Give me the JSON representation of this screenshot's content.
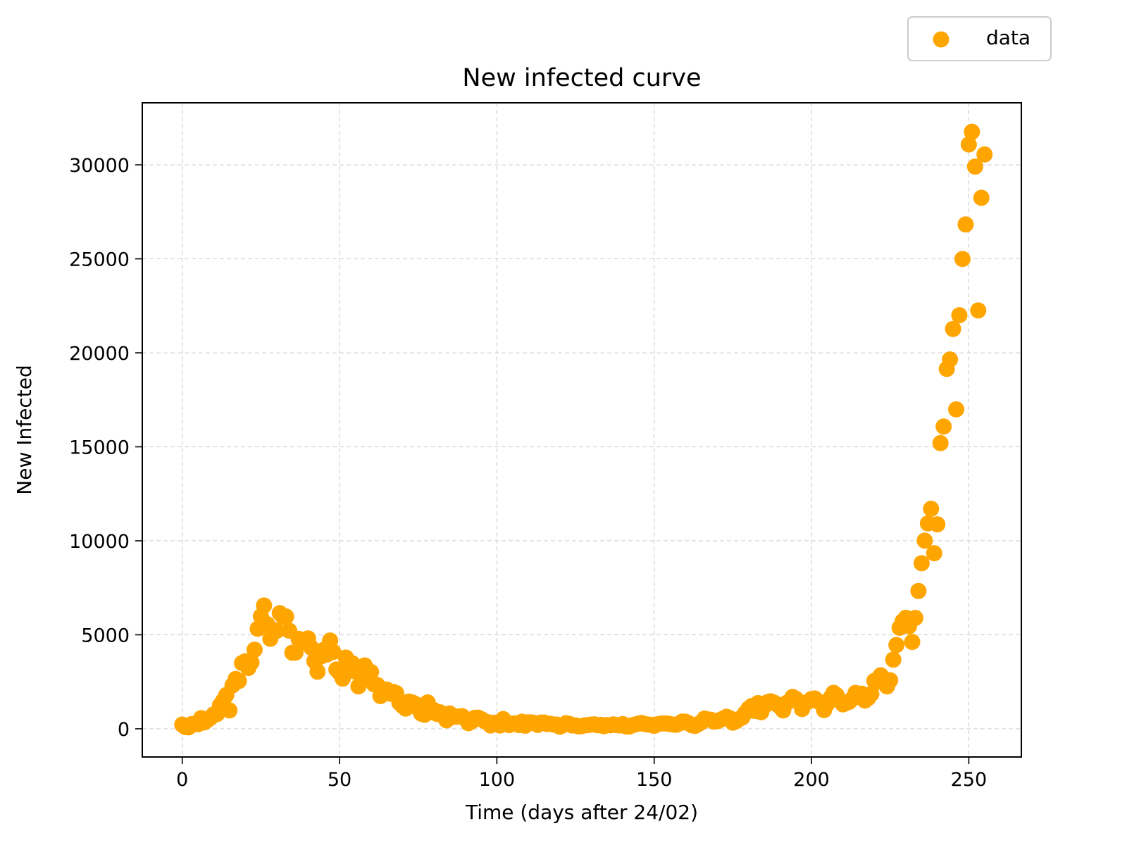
{
  "chart_data": {
    "type": "scatter",
    "title": "New infected curve",
    "xlabel": "Time (days after 24/02)",
    "ylabel": "New Infected",
    "xlim": [
      -12.7,
      266.7
    ],
    "ylim": [
      -1500,
      33300
    ],
    "xticks": [
      0,
      50,
      100,
      150,
      200,
      250
    ],
    "yticks": [
      0,
      5000,
      10000,
      15000,
      20000,
      25000,
      30000
    ],
    "grid": true,
    "legend_position": "top-right",
    "series": [
      {
        "name": "data",
        "color": "#ffa500",
        "points": [
          [
            0,
            221
          ],
          [
            1,
            93
          ],
          [
            2,
            78
          ],
          [
            3,
            250
          ],
          [
            4,
            238
          ],
          [
            5,
            240
          ],
          [
            6,
            566
          ],
          [
            7,
            342
          ],
          [
            8,
            466
          ],
          [
            9,
            587
          ],
          [
            10,
            769
          ],
          [
            11,
            778
          ],
          [
            12,
            1247
          ],
          [
            13,
            1492
          ],
          [
            14,
            1797
          ],
          [
            15,
            977
          ],
          [
            16,
            2313
          ],
          [
            17,
            2651
          ],
          [
            18,
            2547
          ],
          [
            19,
            3497
          ],
          [
            20,
            3590
          ],
          [
            21,
            3233
          ],
          [
            22,
            3526
          ],
          [
            23,
            4207
          ],
          [
            24,
            5322
          ],
          [
            25,
            5986
          ],
          [
            26,
            6557
          ],
          [
            27,
            5560
          ],
          [
            28,
            4789
          ],
          [
            29,
            5249
          ],
          [
            30,
            5210
          ],
          [
            31,
            6153
          ],
          [
            32,
            5959
          ],
          [
            33,
            5974
          ],
          [
            34,
            5217
          ],
          [
            35,
            4050
          ],
          [
            36,
            4053
          ],
          [
            37,
            4782
          ],
          [
            38,
            4668
          ],
          [
            39,
            4585
          ],
          [
            40,
            4805
          ],
          [
            41,
            4316
          ],
          [
            42,
            3599
          ],
          [
            43,
            3039
          ],
          [
            44,
            3836
          ],
          [
            45,
            4204
          ],
          [
            46,
            3951
          ],
          [
            47,
            4694
          ],
          [
            48,
            4092
          ],
          [
            49,
            3153
          ],
          [
            50,
            2972
          ],
          [
            51,
            2667
          ],
          [
            52,
            3786
          ],
          [
            53,
            3493
          ],
          [
            54,
            3491
          ],
          [
            55,
            3047
          ],
          [
            56,
            2256
          ],
          [
            57,
            2729
          ],
          [
            58,
            3370
          ],
          [
            59,
            2646
          ],
          [
            60,
            3021
          ],
          [
            61,
            2357
          ],
          [
            62,
            2324
          ],
          [
            63,
            1739
          ],
          [
            64,
            2091
          ],
          [
            65,
            2086
          ],
          [
            66,
            1872
          ],
          [
            67,
            1965
          ],
          [
            68,
            1900
          ],
          [
            69,
            1389
          ],
          [
            70,
            1221
          ],
          [
            71,
            1075
          ],
          [
            72,
            1444
          ],
          [
            73,
            1401
          ],
          [
            74,
            1327
          ],
          [
            75,
            1083
          ],
          [
            76,
            802
          ],
          [
            77,
            744
          ],
          [
            78,
            1402
          ],
          [
            79,
            888
          ],
          [
            80,
            992
          ],
          [
            81,
            789
          ],
          [
            82,
            875
          ],
          [
            83,
            675
          ],
          [
            84,
            451
          ],
          [
            85,
            813
          ],
          [
            86,
            665
          ],
          [
            87,
            642
          ],
          [
            88,
            652
          ],
          [
            89,
            669
          ],
          [
            90,
            531
          ],
          [
            91,
            300
          ],
          [
            92,
            397
          ],
          [
            93,
            584
          ],
          [
            94,
            593
          ],
          [
            95,
            516
          ],
          [
            96,
            416
          ],
          [
            97,
            355
          ],
          [
            98,
            178
          ],
          [
            99,
            318
          ],
          [
            100,
            321
          ],
          [
            101,
            177
          ],
          [
            102,
            518
          ],
          [
            103,
            270
          ],
          [
            104,
            197
          ],
          [
            105,
            280
          ],
          [
            106,
            283
          ],
          [
            107,
            202
          ],
          [
            108,
            379
          ],
          [
            109,
            163
          ],
          [
            110,
            346
          ],
          [
            111,
            338
          ],
          [
            112,
            301
          ],
          [
            113,
            210
          ],
          [
            114,
            329
          ],
          [
            115,
            333
          ],
          [
            116,
            251
          ],
          [
            117,
            264
          ],
          [
            118,
            224
          ],
          [
            119,
            221
          ],
          [
            120,
            113
          ],
          [
            121,
            190
          ],
          [
            122,
            296
          ],
          [
            123,
            259
          ],
          [
            124,
            175
          ],
          [
            125,
            174
          ],
          [
            126,
            126
          ],
          [
            127,
            142
          ],
          [
            128,
            187
          ],
          [
            129,
            201
          ],
          [
            130,
            223
          ],
          [
            131,
            235
          ],
          [
            132,
            192
          ],
          [
            133,
            208
          ],
          [
            134,
            138
          ],
          [
            135,
            193
          ],
          [
            136,
            188
          ],
          [
            137,
            234
          ],
          [
            138,
            201
          ],
          [
            139,
            181
          ],
          [
            140,
            252
          ],
          [
            141,
            128
          ],
          [
            142,
            114
          ],
          [
            143,
            190
          ],
          [
            144,
            232
          ],
          [
            145,
            274
          ],
          [
            146,
            306
          ],
          [
            147,
            252
          ],
          [
            148,
            230
          ],
          [
            149,
            212
          ],
          [
            150,
            158
          ],
          [
            151,
            239
          ],
          [
            152,
            275
          ],
          [
            153,
            286
          ],
          [
            154,
            282
          ],
          [
            155,
            253
          ],
          [
            156,
            222
          ],
          [
            157,
            212
          ],
          [
            158,
            282
          ],
          [
            159,
            388
          ],
          [
            160,
            374
          ],
          [
            161,
            289
          ],
          [
            162,
            188
          ],
          [
            163,
            155
          ],
          [
            164,
            249
          ],
          [
            165,
            347
          ],
          [
            166,
            540
          ],
          [
            167,
            500
          ],
          [
            168,
            482
          ],
          [
            169,
            384
          ],
          [
            170,
            402
          ],
          [
            171,
            477
          ],
          [
            172,
            552
          ],
          [
            173,
            640
          ],
          [
            174,
            565
          ],
          [
            175,
            328
          ],
          [
            176,
            402
          ],
          [
            177,
            523
          ],
          [
            178,
            603
          ],
          [
            179,
            845
          ],
          [
            180,
            1070
          ],
          [
            181,
            1210
          ],
          [
            182,
            953
          ],
          [
            183,
            1365
          ],
          [
            184,
            878
          ],
          [
            185,
            1200
          ],
          [
            186,
            1411
          ],
          [
            187,
            1462
          ],
          [
            188,
            1397
          ],
          [
            189,
            1297
          ],
          [
            190,
            1178
          ],
          [
            191,
            978
          ],
          [
            192,
            1360
          ],
          [
            193,
            1470
          ],
          [
            194,
            1695
          ],
          [
            195,
            1597
          ],
          [
            196,
            1434
          ],
          [
            197,
            1050
          ],
          [
            198,
            1370
          ],
          [
            199,
            1452
          ],
          [
            200,
            1585
          ],
          [
            201,
            1616
          ],
          [
            202,
            1458
          ],
          [
            203,
            1392
          ],
          [
            204,
            996
          ],
          [
            205,
            1326
          ],
          [
            206,
            1640
          ],
          [
            207,
            1912
          ],
          [
            208,
            1786
          ],
          [
            209,
            1494
          ],
          [
            210,
            1299
          ],
          [
            211,
            1369
          ],
          [
            212,
            1434
          ],
          [
            213,
            1597
          ],
          [
            214,
            1907
          ],
          [
            215,
            1733
          ],
          [
            216,
            1869
          ],
          [
            217,
            1501
          ],
          [
            218,
            1638
          ],
          [
            219,
            1851
          ],
          [
            220,
            2548
          ],
          [
            221,
            2499
          ],
          [
            222,
            2844
          ],
          [
            223,
            2677
          ],
          [
            224,
            2257
          ],
          [
            225,
            2578
          ],
          [
            226,
            3678
          ],
          [
            227,
            4458
          ],
          [
            228,
            5372
          ],
          [
            229,
            5724
          ],
          [
            230,
            5901
          ],
          [
            231,
            5456
          ],
          [
            232,
            4619
          ],
          [
            233,
            5898
          ],
          [
            234,
            7332
          ],
          [
            235,
            8804
          ],
          [
            236,
            10010
          ],
          [
            237,
            10925
          ],
          [
            238,
            11705
          ],
          [
            239,
            9338
          ],
          [
            240,
            10874
          ],
          [
            241,
            15199
          ],
          [
            242,
            16079
          ],
          [
            243,
            19143
          ],
          [
            244,
            19644
          ],
          [
            245,
            21273
          ],
          [
            246,
            16993
          ],
          [
            247,
            22000
          ],
          [
            248,
            24991
          ],
          [
            249,
            26831
          ],
          [
            250,
            31084
          ],
          [
            251,
            31758
          ],
          [
            252,
            29907
          ],
          [
            253,
            22253
          ],
          [
            254,
            28246
          ],
          [
            255,
            30550
          ]
        ]
      }
    ]
  }
}
